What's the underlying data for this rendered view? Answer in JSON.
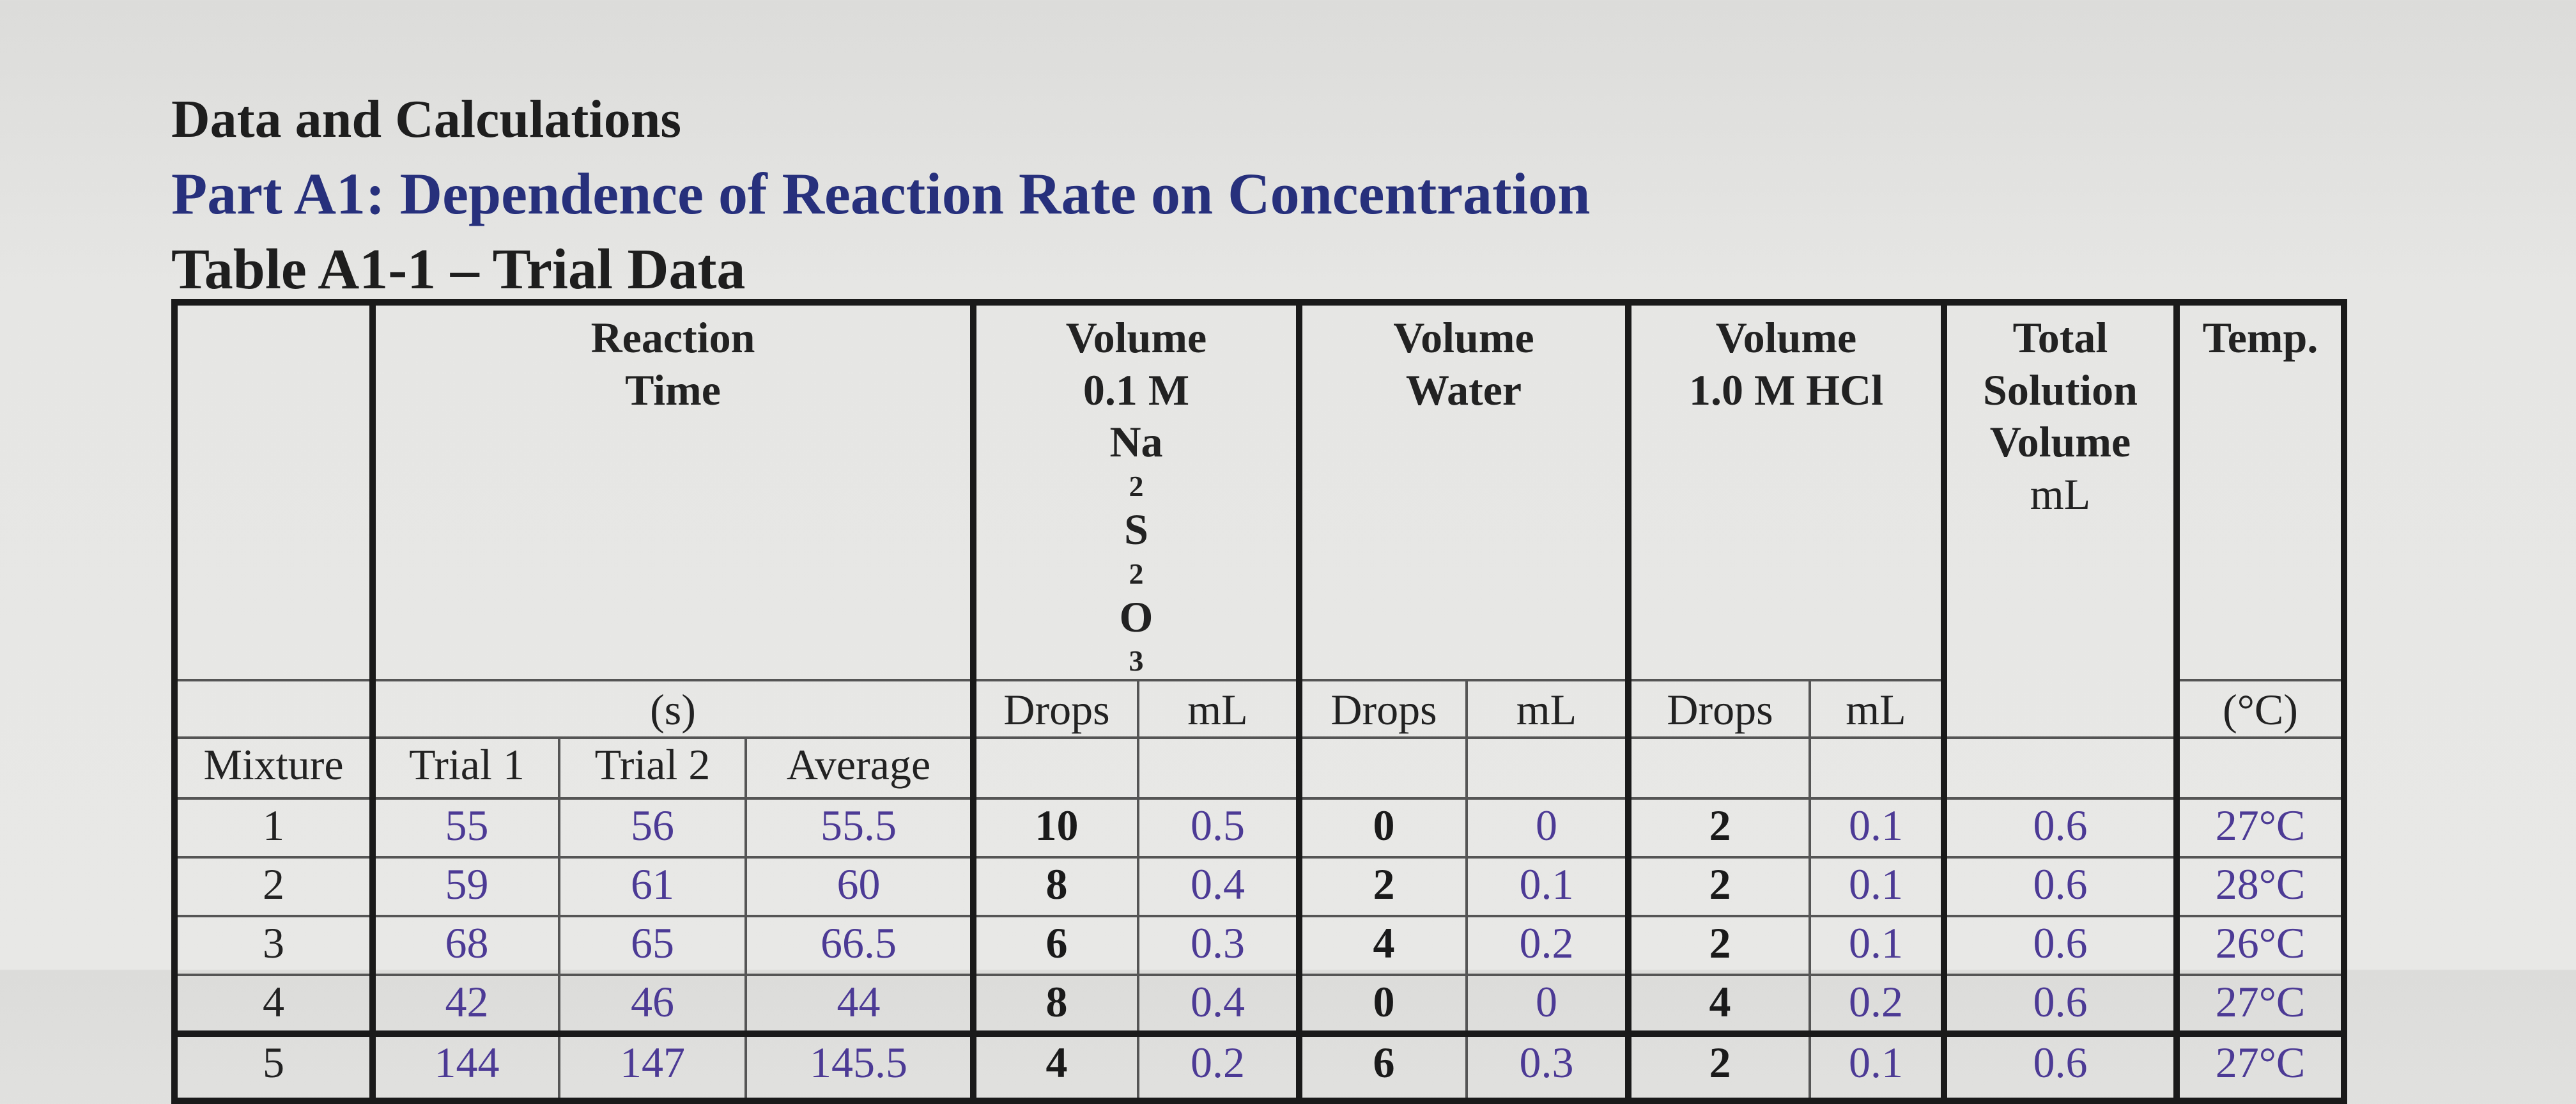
{
  "title": "Data and Calculations",
  "part_title": "Part A1: Dependence of Reaction Rate on Concentration",
  "table_title": "Table A1-1 – Trial Data",
  "headers": {
    "reaction_time": [
      "Reaction",
      "Time"
    ],
    "reaction_time_unit": "(s)",
    "vol_thio": [
      "Volume",
      "0.1 M"
    ],
    "vol_thio_formula": {
      "a": "Na",
      "s1": "2",
      "b": "S",
      "s2": "2",
      "c": "O",
      "s3": "3"
    },
    "vol_water": [
      "Volume",
      "Water"
    ],
    "vol_hcl": [
      "Volume",
      "1.0 M HCl"
    ],
    "total_volume": [
      "Total",
      "Solution",
      "Volume"
    ],
    "temp": "Temp.",
    "drops": "Drops",
    "ml": "mL",
    "temp_unit": "(°C)",
    "mixture": "Mixture",
    "trial1": "Trial 1",
    "trial2": "Trial 2",
    "average": "Average"
  },
  "rows": [
    {
      "mixture": "1",
      "trial1": "55",
      "trial2": "56",
      "average": "55.5",
      "thio_drops": "10",
      "thio_ml": "0.5",
      "water_drops": "0",
      "water_ml": "0",
      "hcl_drops": "2",
      "hcl_ml": "0.1",
      "total_ml": "0.6",
      "temp": "27°C"
    },
    {
      "mixture": "2",
      "trial1": "59",
      "trial2": "61",
      "average": "60",
      "thio_drops": "8",
      "thio_ml": "0.4",
      "water_drops": "2",
      "water_ml": "0.1",
      "hcl_drops": "2",
      "hcl_ml": "0.1",
      "total_ml": "0.6",
      "temp": "28°C"
    },
    {
      "mixture": "3",
      "trial1": "68",
      "trial2": "65",
      "average": "66.5",
      "thio_drops": "6",
      "thio_ml": "0.3",
      "water_drops": "4",
      "water_ml": "0.2",
      "hcl_drops": "2",
      "hcl_ml": "0.1",
      "total_ml": "0.6",
      "temp": "26°C"
    },
    {
      "mixture": "4",
      "trial1": "42",
      "trial2": "46",
      "average": "44",
      "thio_drops": "8",
      "thio_ml": "0.4",
      "water_drops": "0",
      "water_ml": "0",
      "hcl_drops": "4",
      "hcl_ml": "0.2",
      "total_ml": "0.6",
      "temp": "27°C"
    },
    {
      "mixture": "5",
      "trial1": "144",
      "trial2": "147",
      "average": "145.5",
      "thio_drops": "4",
      "thio_ml": "0.2",
      "water_drops": "6",
      "water_ml": "0.3",
      "hcl_drops": "2",
      "hcl_ml": "0.1",
      "total_ml": "0.6",
      "temp": "27°C"
    }
  ]
}
